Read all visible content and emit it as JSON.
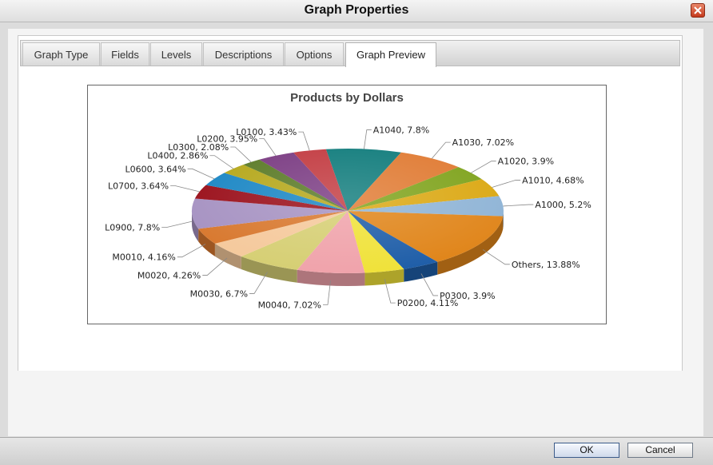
{
  "window": {
    "title": "Graph Properties"
  },
  "tabs": [
    {
      "label": "Graph Type"
    },
    {
      "label": "Fields"
    },
    {
      "label": "Levels"
    },
    {
      "label": "Descriptions"
    },
    {
      "label": "Options"
    },
    {
      "label": "Graph Preview",
      "active": true
    }
  ],
  "buttons": {
    "ok": "OK",
    "cancel": "Cancel"
  },
  "chart_data": {
    "type": "pie",
    "title": "Products by Dollars",
    "three_d": true,
    "slices": [
      {
        "label": "A1040",
        "value": 7.8,
        "text": "A1040, 7.8%",
        "color": "#0f7b7b"
      },
      {
        "label": "A1030",
        "value": 7.02,
        "text": "A1030, 7.02%",
        "color": "#e07a32"
      },
      {
        "label": "A1020",
        "value": 3.9,
        "text": "A1020, 3.9%",
        "color": "#7fa31c"
      },
      {
        "label": "A1010",
        "value": 4.68,
        "text": "A1010, 4.68%",
        "color": "#dba813"
      },
      {
        "label": "A1000",
        "value": 5.2,
        "text": "A1000, 5.2%",
        "color": "#8fb4d6"
      },
      {
        "label": "Others",
        "value": 13.88,
        "text": "Others, 13.88%",
        "color": "#e0851a"
      },
      {
        "label": "P0300",
        "value": 3.9,
        "text": "P0300, 3.9%",
        "color": "#1f5ea8"
      },
      {
        "label": "P0200",
        "value": 4.11,
        "text": "P0200, 4.11%",
        "color": "#f0e23a"
      },
      {
        "label": "M0040",
        "value": 7.02,
        "text": "M0040, 7.02%",
        "color": "#f0a3ab"
      },
      {
        "label": "M0030",
        "value": 6.7,
        "text": "M0030, 6.7%",
        "color": "#d6cf74"
      },
      {
        "label": "M0020",
        "value": 4.26,
        "text": "M0020, 4.26%",
        "color": "#f5c99c"
      },
      {
        "label": "M0010",
        "value": 4.16,
        "text": "M0010, 4.16%",
        "color": "#d8782e"
      },
      {
        "label": "L0900",
        "value": 7.8,
        "text": "L0900, 7.8%",
        "color": "#a692c2"
      },
      {
        "label": "L0700",
        "value": 3.64,
        "text": "L0700, 3.64%",
        "color": "#9a0f1a"
      },
      {
        "label": "L0600",
        "value": 3.64,
        "text": "L0600, 3.64%",
        "color": "#1a86c4"
      },
      {
        "label": "L0400",
        "value": 2.86,
        "text": "L0400, 2.86%",
        "color": "#b5a71a"
      },
      {
        "label": "L0300",
        "value": 2.08,
        "text": "L0300, 2.08%",
        "color": "#5a7a26"
      },
      {
        "label": "L0200",
        "value": 3.95,
        "text": "L0200, 3.95%",
        "color": "#7a3b82"
      },
      {
        "label": "L0100",
        "value": 3.43,
        "text": "L0100, 3.43%",
        "color": "#c23a40"
      }
    ]
  }
}
